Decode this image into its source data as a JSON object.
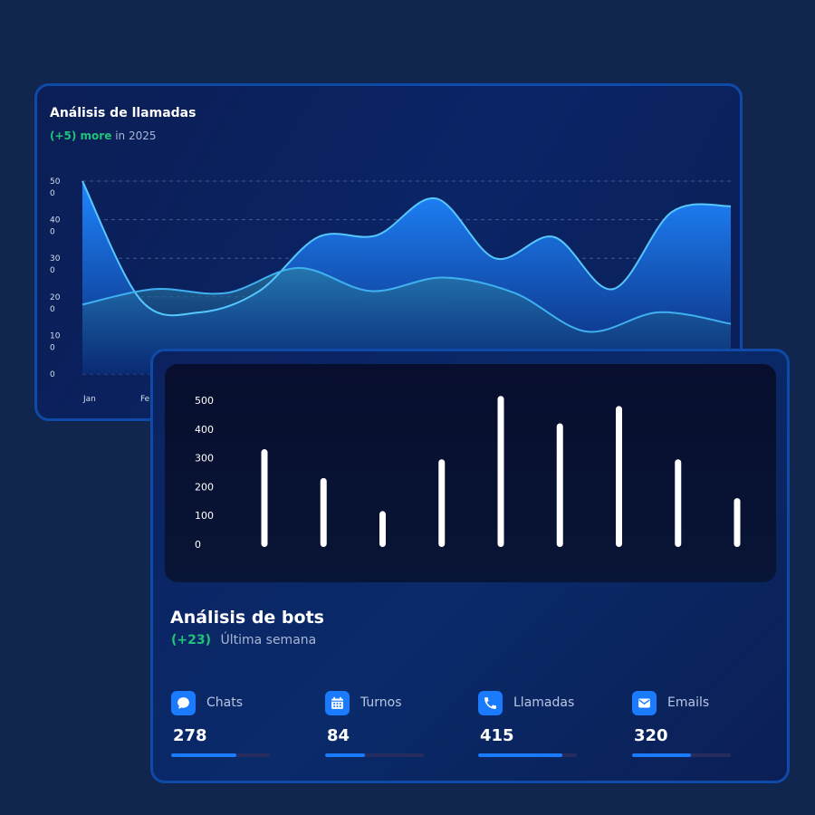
{
  "calls_card": {
    "title": "Análisis de llamadas",
    "delta": "(+5) more",
    "delta_suffix": "in 2025"
  },
  "bots_card": {
    "title": "Análisis de bots",
    "delta": "(+23)",
    "delta_suffix": "Última semana"
  },
  "stats": [
    {
      "label": "Chats",
      "value": "278",
      "icon": "chat-icon",
      "progress": 0.66
    },
    {
      "label": "Turnos",
      "value": "84",
      "icon": "calendar-icon",
      "progress": 0.4
    },
    {
      "label": "Llamadas",
      "value": "415",
      "icon": "phone-icon",
      "progress": 0.85
    },
    {
      "label": "Emails",
      "value": "320",
      "icon": "mail-icon",
      "progress": 0.6
    }
  ],
  "colors": {
    "accent": "#1a7bff",
    "positive": "#1fc37a",
    "line_light": "#3fb8ff",
    "background": "#10264e"
  },
  "chart_data": [
    {
      "type": "area",
      "title": "Análisis de llamadas",
      "ylim": [
        0,
        500
      ],
      "y_ticks": [
        "50\n0",
        "40\n0",
        "30\n0",
        "20\n0",
        "10\n0",
        "0"
      ],
      "x_tick_labels": [
        "Jan",
        "Feb"
      ],
      "grid": true,
      "series": [
        {
          "values": [
            500,
            190,
            160,
            215,
            355,
            360,
            455,
            300,
            355,
            220,
            420,
            435
          ]
        },
        {
          "values": [
            180,
            220,
            210,
            275,
            215,
            250,
            210,
            110,
            160,
            130
          ]
        }
      ]
    },
    {
      "type": "bar",
      "y_ticks": [
        "500",
        "400",
        "300",
        "200",
        "100",
        "0"
      ],
      "ylim": [
        0,
        500
      ],
      "values": [
        330,
        230,
        115,
        295,
        515,
        420,
        480,
        295,
        160
      ]
    }
  ]
}
